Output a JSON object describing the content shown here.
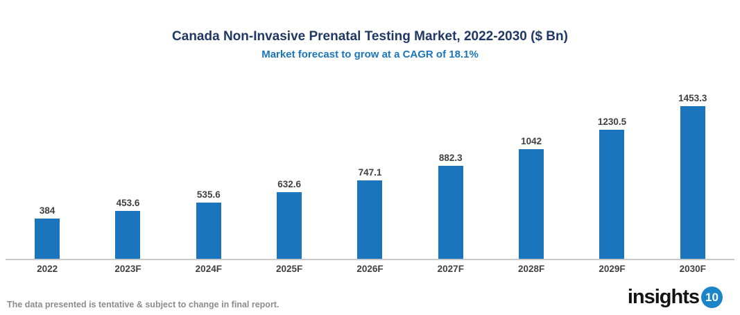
{
  "header": {
    "title": "Canada Non-Invasive Prenatal Testing Market, 2022-2030 ($ Bn)",
    "subtitle": "Market forecast to grow at a CAGR of 18.1%"
  },
  "chart_data": {
    "type": "bar",
    "categories": [
      "2022",
      "2023F",
      "2024F",
      "2025F",
      "2026F",
      "2027F",
      "2028F",
      "2029F",
      "2030F"
    ],
    "values": [
      384,
      453.6,
      535.6,
      632.6,
      747.1,
      882.3,
      1042,
      1230.5,
      1453.3
    ],
    "title": "Canada Non-Invasive Prenatal Testing Market, 2022-2030 ($ Bn)",
    "subtitle": "Market forecast to grow at a CAGR of 18.1%",
    "xlabel": "",
    "ylabel": "",
    "ylim": [
      0,
      1500
    ],
    "grid": false,
    "legend": "none",
    "data_labels": true,
    "bar_color": "#1B75BC"
  },
  "colors": {
    "title": "#1F3864",
    "subtitle": "#1B75BC",
    "bar": "#1B75BC",
    "data_label": "#404040",
    "axis_line": "#C9C9C9",
    "disclaimer": "#8C8C8C",
    "logo_text": "#131313",
    "logo_badge_bg": "#1B85C7"
  },
  "footer": {
    "disclaimer": "The data presented is tentative & subject to change in final report.",
    "logo_text": "insights",
    "logo_badge": "10"
  }
}
